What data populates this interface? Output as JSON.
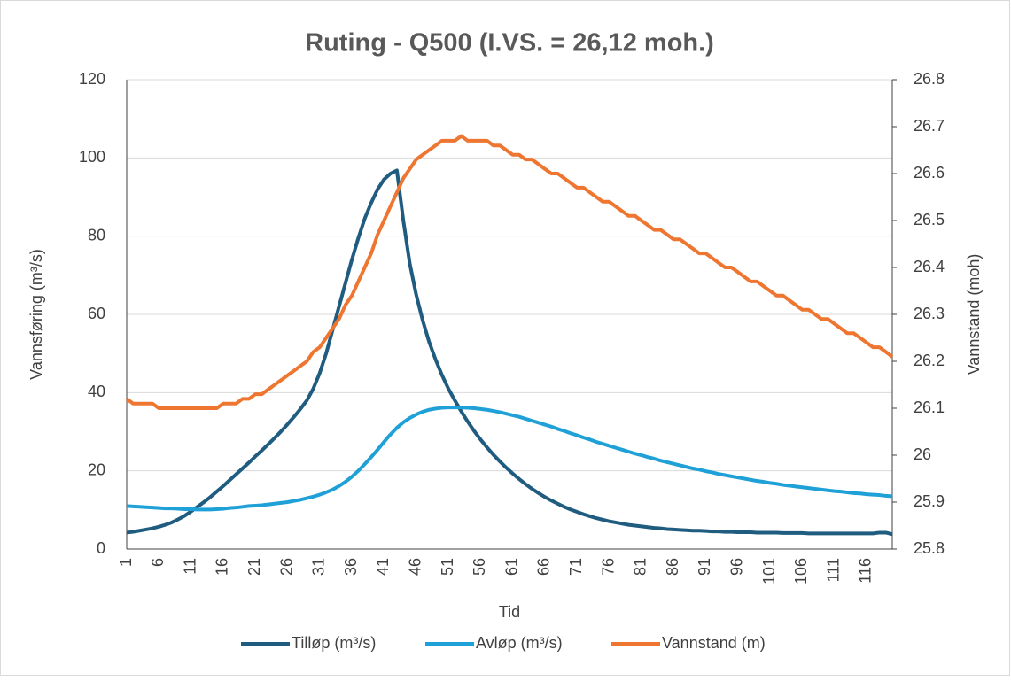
{
  "chart_data": {
    "type": "line",
    "title": "Ruting - Q500  (I.VS. = 26,12 moh.)",
    "xlabel": "Tid",
    "ylabel": "Vannsføring (m³/s)",
    "y2label": "Vannstand (moh)",
    "categories": [
      "1",
      null,
      null,
      null,
      null,
      "6",
      null,
      null,
      null,
      null,
      "11",
      null,
      null,
      null,
      null,
      "16",
      null,
      null,
      null,
      null,
      "21",
      null,
      null,
      null,
      null,
      "26",
      null,
      null,
      null,
      null,
      "31",
      null,
      null,
      null,
      null,
      "36",
      null,
      null,
      null,
      null,
      "41",
      null,
      null,
      null,
      null,
      "46",
      null,
      null,
      null,
      null,
      "51",
      null,
      null,
      null,
      null,
      "56",
      null,
      null,
      null,
      null,
      "61",
      null,
      null,
      null,
      null,
      "66",
      null,
      null,
      null,
      null,
      "71",
      null,
      null,
      null,
      null,
      "76",
      null,
      null,
      null,
      null,
      "81",
      null,
      null,
      null,
      null,
      "86",
      null,
      null,
      null,
      null,
      "91",
      null,
      null,
      null,
      null,
      "96",
      null,
      null,
      null,
      null,
      "101",
      null,
      null,
      null,
      null,
      "106",
      null,
      null,
      null,
      null,
      "111",
      null,
      null,
      null,
      null,
      "116",
      null,
      null,
      null,
      null
    ],
    "ylim": [
      0,
      120
    ],
    "yticks": [
      0,
      20,
      40,
      60,
      80,
      100,
      120
    ],
    "y2lim": [
      25.8,
      26.8
    ],
    "y2ticks": [
      25.8,
      25.9,
      26,
      26.1,
      26.2,
      26.3,
      26.4,
      26.5,
      26.6,
      26.7,
      26.8
    ],
    "grid": true,
    "legend": "bottom",
    "series": [
      {
        "name": "Tilløp (m³/s)",
        "color": "#1f5c80",
        "values": [
          4.2,
          4.4,
          4.7,
          5.0,
          5.3,
          5.7,
          6.2,
          6.8,
          7.6,
          8.5,
          9.6,
          10.8,
          12.0,
          13.3,
          14.7,
          16.1,
          17.6,
          19.1,
          20.6,
          22.1,
          23.7,
          25.2,
          26.8,
          28.4,
          30.1,
          31.9,
          33.8,
          35.8,
          38.0,
          41.0,
          45.0,
          50.0,
          56.0,
          62.0,
          68.0,
          74.0,
          79.5,
          84.5,
          88.5,
          92.0,
          94.5,
          96.0,
          96.8,
          84.0,
          73.0,
          65.0,
          58.5,
          53.0,
          48.5,
          44.5,
          41.0,
          38.0,
          35.2,
          32.6,
          30.2,
          28.0,
          26.0,
          24.1,
          22.4,
          20.8,
          19.3,
          17.9,
          16.6,
          15.4,
          14.3,
          13.3,
          12.4,
          11.6,
          10.8,
          10.1,
          9.5,
          8.9,
          8.4,
          7.9,
          7.5,
          7.1,
          6.8,
          6.5,
          6.2,
          6.0,
          5.8,
          5.6,
          5.4,
          5.3,
          5.1,
          5.0,
          4.9,
          4.8,
          4.7,
          4.7,
          4.6,
          4.5,
          4.5,
          4.4,
          4.4,
          4.3,
          4.3,
          4.3,
          4.2,
          4.2,
          4.2,
          4.2,
          4.1,
          4.1,
          4.1,
          4.1,
          4.0,
          4.0,
          4.0,
          4.0,
          4.0,
          4.0,
          4.0,
          4.0,
          4.0,
          4.0,
          4.0,
          4.2,
          4.2,
          3.8
        ]
      },
      {
        "name": "Avløp (m³/s)",
        "color": "#1fa1d8",
        "values": [
          11.0,
          10.9,
          10.8,
          10.7,
          10.6,
          10.5,
          10.4,
          10.4,
          10.3,
          10.2,
          10.2,
          10.1,
          10.1,
          10.1,
          10.2,
          10.3,
          10.5,
          10.6,
          10.8,
          11.0,
          11.1,
          11.2,
          11.4,
          11.6,
          11.8,
          12.0,
          12.3,
          12.6,
          13.0,
          13.4,
          13.9,
          14.5,
          15.2,
          16.1,
          17.2,
          18.5,
          20.0,
          21.7,
          23.5,
          25.4,
          27.4,
          29.3,
          31.0,
          32.4,
          33.5,
          34.4,
          35.1,
          35.6,
          35.9,
          36.1,
          36.2,
          36.2,
          36.2,
          36.1,
          36.0,
          35.8,
          35.6,
          35.3,
          35.0,
          34.6,
          34.2,
          33.8,
          33.3,
          32.8,
          32.3,
          31.8,
          31.3,
          30.7,
          30.2,
          29.6,
          29.1,
          28.5,
          28.0,
          27.4,
          26.9,
          26.4,
          25.9,
          25.4,
          24.9,
          24.4,
          24.0,
          23.5,
          23.1,
          22.6,
          22.2,
          21.8,
          21.4,
          21.0,
          20.6,
          20.3,
          19.9,
          19.6,
          19.2,
          18.9,
          18.6,
          18.3,
          18.0,
          17.7,
          17.4,
          17.2,
          16.9,
          16.7,
          16.4,
          16.2,
          16.0,
          15.8,
          15.6,
          15.4,
          15.2,
          15.0,
          14.8,
          14.7,
          14.5,
          14.3,
          14.2,
          14.0,
          13.9,
          13.8,
          13.6,
          13.5
        ]
      },
      {
        "name": "Vannstand (m)",
        "color": "#ee7630",
        "axis": "y2",
        "values": [
          26.12,
          26.11,
          26.11,
          26.11,
          26.11,
          26.1,
          26.1,
          26.1,
          26.1,
          26.1,
          26.1,
          26.1,
          26.1,
          26.1,
          26.1,
          26.11,
          26.11,
          26.11,
          26.12,
          26.12,
          26.13,
          26.13,
          26.14,
          26.15,
          26.16,
          26.17,
          26.18,
          26.19,
          26.2,
          26.22,
          26.23,
          26.25,
          26.27,
          26.29,
          26.32,
          26.34,
          26.37,
          26.4,
          26.43,
          26.47,
          26.5,
          26.53,
          26.56,
          26.59,
          26.61,
          26.63,
          26.64,
          26.65,
          26.66,
          26.67,
          26.67,
          26.67,
          26.68,
          26.67,
          26.67,
          26.67,
          26.67,
          26.66,
          26.66,
          26.65,
          26.64,
          26.64,
          26.63,
          26.63,
          26.62,
          26.61,
          26.6,
          26.6,
          26.59,
          26.58,
          26.57,
          26.57,
          26.56,
          26.55,
          26.54,
          26.54,
          26.53,
          26.52,
          26.51,
          26.51,
          26.5,
          26.49,
          26.48,
          26.48,
          26.47,
          26.46,
          26.46,
          26.45,
          26.44,
          26.43,
          26.43,
          26.42,
          26.41,
          26.4,
          26.4,
          26.39,
          26.38,
          26.37,
          26.37,
          26.36,
          26.35,
          26.34,
          26.34,
          26.33,
          26.32,
          26.31,
          26.31,
          26.3,
          26.29,
          26.29,
          26.28,
          26.27,
          26.26,
          26.26,
          26.25,
          26.24,
          26.23,
          26.23,
          26.22,
          26.21
        ]
      }
    ]
  }
}
